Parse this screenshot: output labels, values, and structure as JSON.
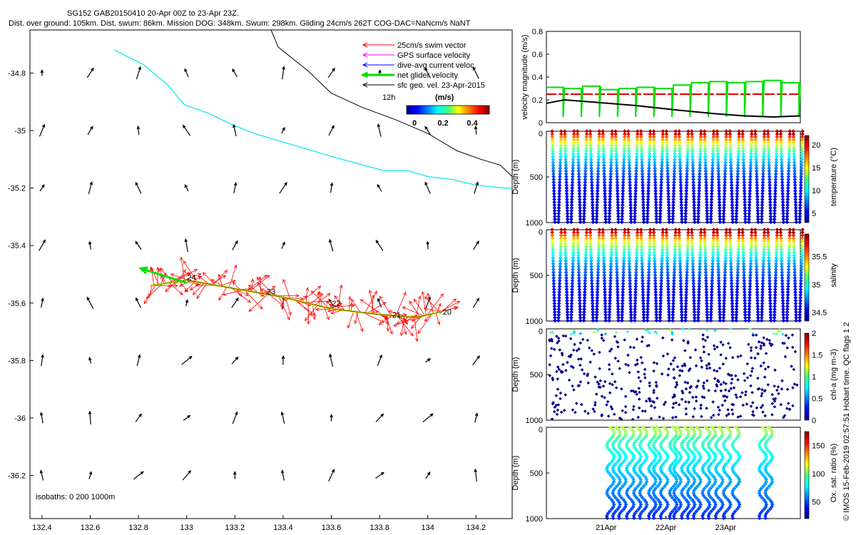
{
  "header": {
    "title": "SG152 GAB20150410 20-Apr 00Z to 23-Apr 23Z.",
    "subtitle": "Dist. over ground: 105km. Dist. swum: 86km. Mission DOG: 348km. Swum: 298km. Gliding 24cm/s 262T COG-DAC=NaNcm/s NaNT"
  },
  "side_label": "© IMOS 15-Feb-2019 02:57:51 Hobart time. QC flags 1  2",
  "colors": {
    "swim": "#ff0000",
    "gps": "#ff00ff",
    "dac": "#0000ff",
    "net": "#00e000",
    "geo": "#000000",
    "isobath200": "#00e5ee",
    "isobath1000": "#000000",
    "track": "#e8e800",
    "ref": "#e00000"
  },
  "chart_data": [
    {
      "name": "map",
      "type": "quiver-map",
      "xlim": [
        132.35,
        134.35
      ],
      "ylim": [
        -36.35,
        -34.65
      ],
      "xticks": [
        132.4,
        132.6,
        132.8,
        133,
        133.2,
        133.4,
        133.6,
        133.8,
        134,
        134.2
      ],
      "xtick_labels": [
        "132.4",
        "132.6",
        "132.8",
        "133",
        "133.2",
        "133.4",
        "133.6",
        "133.8",
        "134",
        "134.2"
      ],
      "yticks": [
        -34.8,
        -35,
        -35.2,
        -35.4,
        -35.6,
        -35.8,
        -36,
        -36.2
      ],
      "ytick_labels": [
        "-34.8",
        "-35",
        "-35.2",
        "-35.4",
        "-35.6",
        "-35.8",
        "-36",
        "-36.2"
      ],
      "legend": [
        {
          "key": "swim",
          "label": "25cm/s swim vector"
        },
        {
          "key": "gps",
          "label": "GPS surface velocity"
        },
        {
          "key": "dac",
          "label": "dive-avg current veloc."
        },
        {
          "key": "net",
          "label": "net glider velocity"
        },
        {
          "key": "geo",
          "label": "sfc geo. vel. 23-Apr-2015"
        }
      ],
      "legend_extra": "12h",
      "colorbar": {
        "title": "(m/s)",
        "ticks": [
          "0",
          "0.2",
          "0.4"
        ]
      },
      "isobath_label": "isobaths: 0   200  1000m",
      "isobath200": [
        [
          132.7,
          -34.72
        ],
        [
          132.82,
          -34.77
        ],
        [
          132.92,
          -34.84
        ],
        [
          132.99,
          -34.91
        ],
        [
          133.09,
          -34.94
        ],
        [
          133.19,
          -34.98
        ],
        [
          133.28,
          -35.01
        ],
        [
          133.4,
          -35.04
        ],
        [
          133.52,
          -35.07
        ],
        [
          133.6,
          -35.09
        ],
        [
          133.73,
          -35.12
        ],
        [
          133.82,
          -35.14
        ],
        [
          133.92,
          -35.14
        ],
        [
          134.0,
          -35.16
        ],
        [
          134.1,
          -35.17
        ],
        [
          134.2,
          -35.19
        ],
        [
          134.32,
          -35.2
        ],
        [
          134.35,
          -35.2
        ]
      ],
      "isobath1000": [
        [
          133.35,
          -34.65
        ],
        [
          133.38,
          -34.71
        ],
        [
          133.5,
          -34.79
        ],
        [
          133.6,
          -34.87
        ],
        [
          133.73,
          -34.92
        ],
        [
          133.86,
          -34.96
        ],
        [
          134.0,
          -35.01
        ],
        [
          134.12,
          -35.07
        ],
        [
          134.22,
          -35.1
        ],
        [
          134.3,
          -35.12
        ],
        [
          134.35,
          -35.16
        ]
      ],
      "track": [
        [
          132.85,
          -35.54
        ],
        [
          133.0,
          -35.52
        ],
        [
          133.2,
          -35.55
        ],
        [
          133.4,
          -35.58
        ],
        [
          133.6,
          -35.62
        ],
        [
          133.8,
          -35.64
        ],
        [
          133.95,
          -35.65
        ],
        [
          134.06,
          -35.63
        ]
      ],
      "track_labels": [
        {
          "text": "24",
          "lon": 133.02,
          "lat": -35.52
        },
        {
          "text": "23",
          "lon": 133.35,
          "lat": -35.57
        },
        {
          "text": "22",
          "lon": 133.62,
          "lat": -35.61
        },
        {
          "text": "21",
          "lon": 133.87,
          "lat": -35.65
        },
        {
          "text": "20",
          "lon": 134.08,
          "lat": -35.64
        }
      ],
      "net_vector": {
        "from": [
          133.0,
          -35.53
        ],
        "to": [
          132.81,
          -35.48
        ]
      },
      "geo_grid": {
        "lons": [
          132.4,
          132.6,
          132.8,
          133,
          133.2,
          133.4,
          133.6,
          133.8,
          134,
          134.2
        ],
        "lats": [
          -34.8,
          -35,
          -35.2,
          -35.4,
          -35.6,
          -35.8,
          -36,
          -36.2
        ]
      }
    },
    {
      "name": "velocity",
      "type": "line",
      "ylabel": "velocity magnitude (m/s)",
      "ylim": [
        0,
        0.8
      ],
      "yticks": [
        "0",
        "0.2",
        "0.4",
        "0.6",
        "0.8"
      ],
      "xlim": [
        0,
        4.25
      ],
      "ref_level": 0.25,
      "series": [
        {
          "name": "geo",
          "x": [
            0,
            0.3,
            0.8,
            1.5,
            2.2,
            2.8,
            3.3,
            3.8,
            4.25
          ],
          "y": [
            0.17,
            0.2,
            0.18,
            0.15,
            0.11,
            0.08,
            0.06,
            0.05,
            0.06
          ]
        }
      ],
      "net_level": [
        0.31,
        0.3,
        0.32,
        0.29,
        0.3,
        0.31,
        0.3,
        0.33,
        0.35,
        0.36,
        0.35,
        0.36,
        0.37,
        0.35
      ]
    },
    {
      "name": "temperature",
      "type": "scatter-profiles",
      "ylabel": "Depth (m)",
      "yticks": [
        "0",
        "500",
        "1000"
      ],
      "cbar_label": "temperature (°C)",
      "cbar_ticks": [
        "5",
        "10",
        "15",
        "20"
      ],
      "cbar_range": [
        3,
        22
      ],
      "ncasts": 40,
      "surface_value": 21,
      "deep_value": 4
    },
    {
      "name": "salinity",
      "type": "scatter-profiles",
      "ylabel": "Depth (m)",
      "yticks": [
        "0",
        "500",
        "1000"
      ],
      "cbar_label": "salinity",
      "cbar_ticks": [
        "34.5",
        "35",
        "35.5"
      ],
      "cbar_range": [
        34.35,
        35.9
      ],
      "ncasts": 40,
      "surface_value": 35.85,
      "deep_value": 34.45
    },
    {
      "name": "chla",
      "type": "scatter-points",
      "ylabel": "Depth (m)",
      "yticks": [
        "0",
        "500",
        "1000"
      ],
      "cbar_label": "chl-a (mg m-3)",
      "cbar_ticks": [
        "0",
        "0.5",
        "1",
        "1.5",
        "2"
      ],
      "cbar_range": [
        0,
        2
      ]
    },
    {
      "name": "oxygen",
      "type": "scatter-profiles",
      "ylabel": "Depth (m)",
      "yticks": [
        "0",
        "500",
        "1000"
      ],
      "cbar_label": "Ox. sat. ratio (%)",
      "cbar_ticks": [
        "50",
        "100",
        "150"
      ],
      "cbar_range": [
        20,
        175
      ],
      "xtick_labels": [
        "21Apr",
        "22Apr",
        "23Apr"
      ],
      "cast_times": [
        1.0,
        1.1,
        1.2,
        1.33,
        1.45,
        1.55,
        1.7,
        1.78,
        1.9,
        2.05,
        2.12,
        2.25,
        2.35,
        2.45,
        2.6,
        2.7,
        2.82,
        2.95,
        3.1,
        3.55,
        3.65
      ]
    }
  ]
}
